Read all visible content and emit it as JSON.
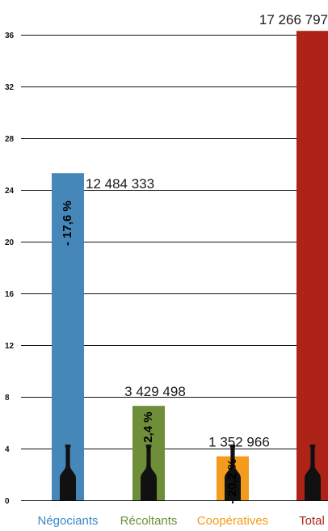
{
  "chart_data": {
    "type": "bar",
    "categories": [
      "Négociants",
      "Récoltants",
      "Coopératives",
      "Total"
    ],
    "values": [
      12484333,
      3429498,
      1352966,
      17266797
    ],
    "bar_height_in_axis_units": [
      25.3,
      7.3,
      3.4,
      36.3
    ],
    "value_labels": [
      "12 484 333",
      "3 429 498",
      "1 352 966",
      "17 266 797"
    ],
    "change_labels": [
      "- 17,6 %",
      "- 2,4 %",
      "- 20,2 %",
      ""
    ],
    "colors": [
      "#4587b8",
      "#6e8e3a",
      "#f29b1c",
      "#ae2318"
    ],
    "category_label_colors": [
      "#3a88c5",
      "#6e8e3a",
      "#f29b1c",
      "#ae2318"
    ],
    "value_label_colors": [
      "#1a1a1a",
      "#1a1a1a",
      "#1a1a1a",
      "#ae2318"
    ],
    "yticks": [
      0,
      4,
      8,
      12,
      16,
      20,
      24,
      28,
      32,
      36
    ],
    "ylim": [
      0,
      38
    ],
    "grid": true,
    "bottle_icon": "wine-bottle-icon"
  }
}
